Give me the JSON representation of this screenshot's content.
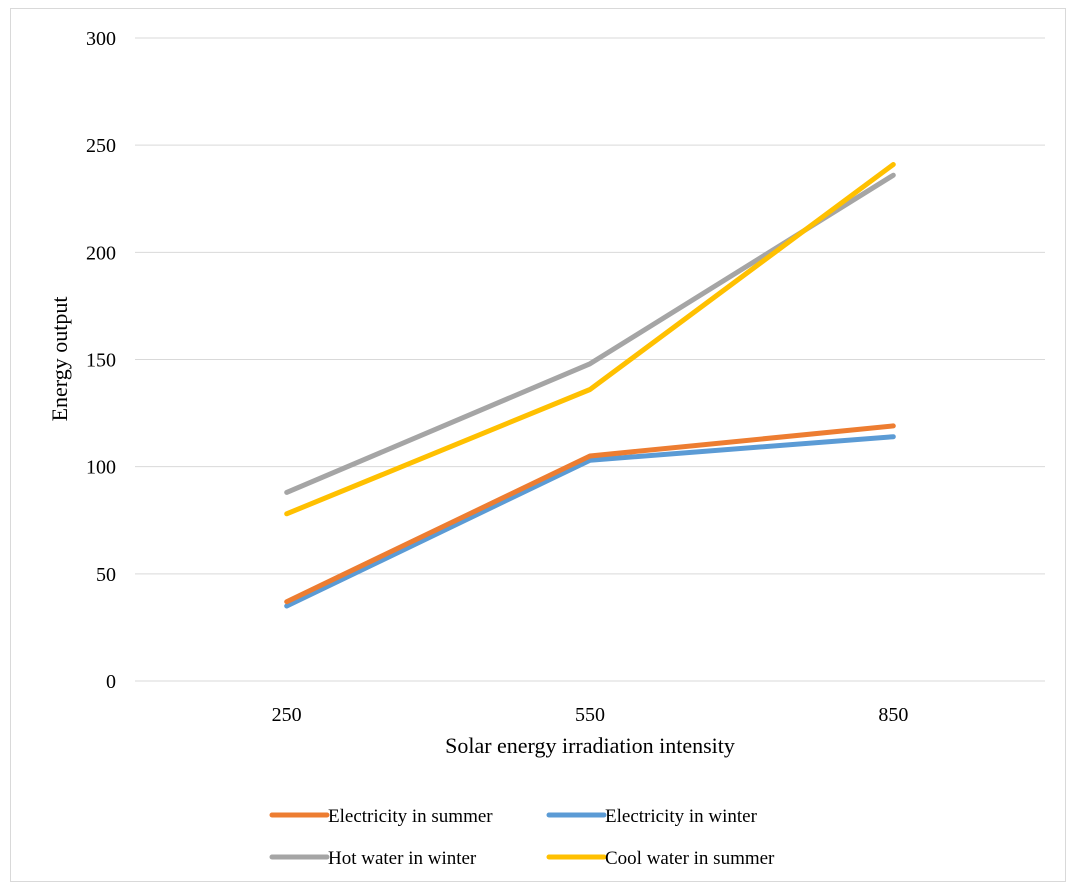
{
  "chart_data": {
    "type": "line",
    "title": "",
    "xlabel": "Solar energy irradiation intensity",
    "ylabel": "Energy output",
    "categories": [
      "250",
      "550",
      "850"
    ],
    "ylim": [
      0,
      300
    ],
    "yticks": [
      0,
      50,
      100,
      150,
      200,
      250,
      300
    ],
    "grid": true,
    "legend_position": "bottom",
    "series": [
      {
        "name": "Electricity in winter",
        "color": "#5b9bd5",
        "values": [
          35,
          103,
          114
        ]
      },
      {
        "name": "Electricity in summer",
        "color": "#ed7d31",
        "values": [
          37,
          105,
          119
        ]
      },
      {
        "name": "Hot water in winter",
        "color": "#a5a5a5",
        "values": [
          88,
          148,
          236
        ]
      },
      {
        "name": "Cool water in summer",
        "color": "#ffc000",
        "values": [
          78,
          136,
          241
        ]
      }
    ],
    "legend_order": [
      1,
      0,
      2,
      3
    ]
  }
}
